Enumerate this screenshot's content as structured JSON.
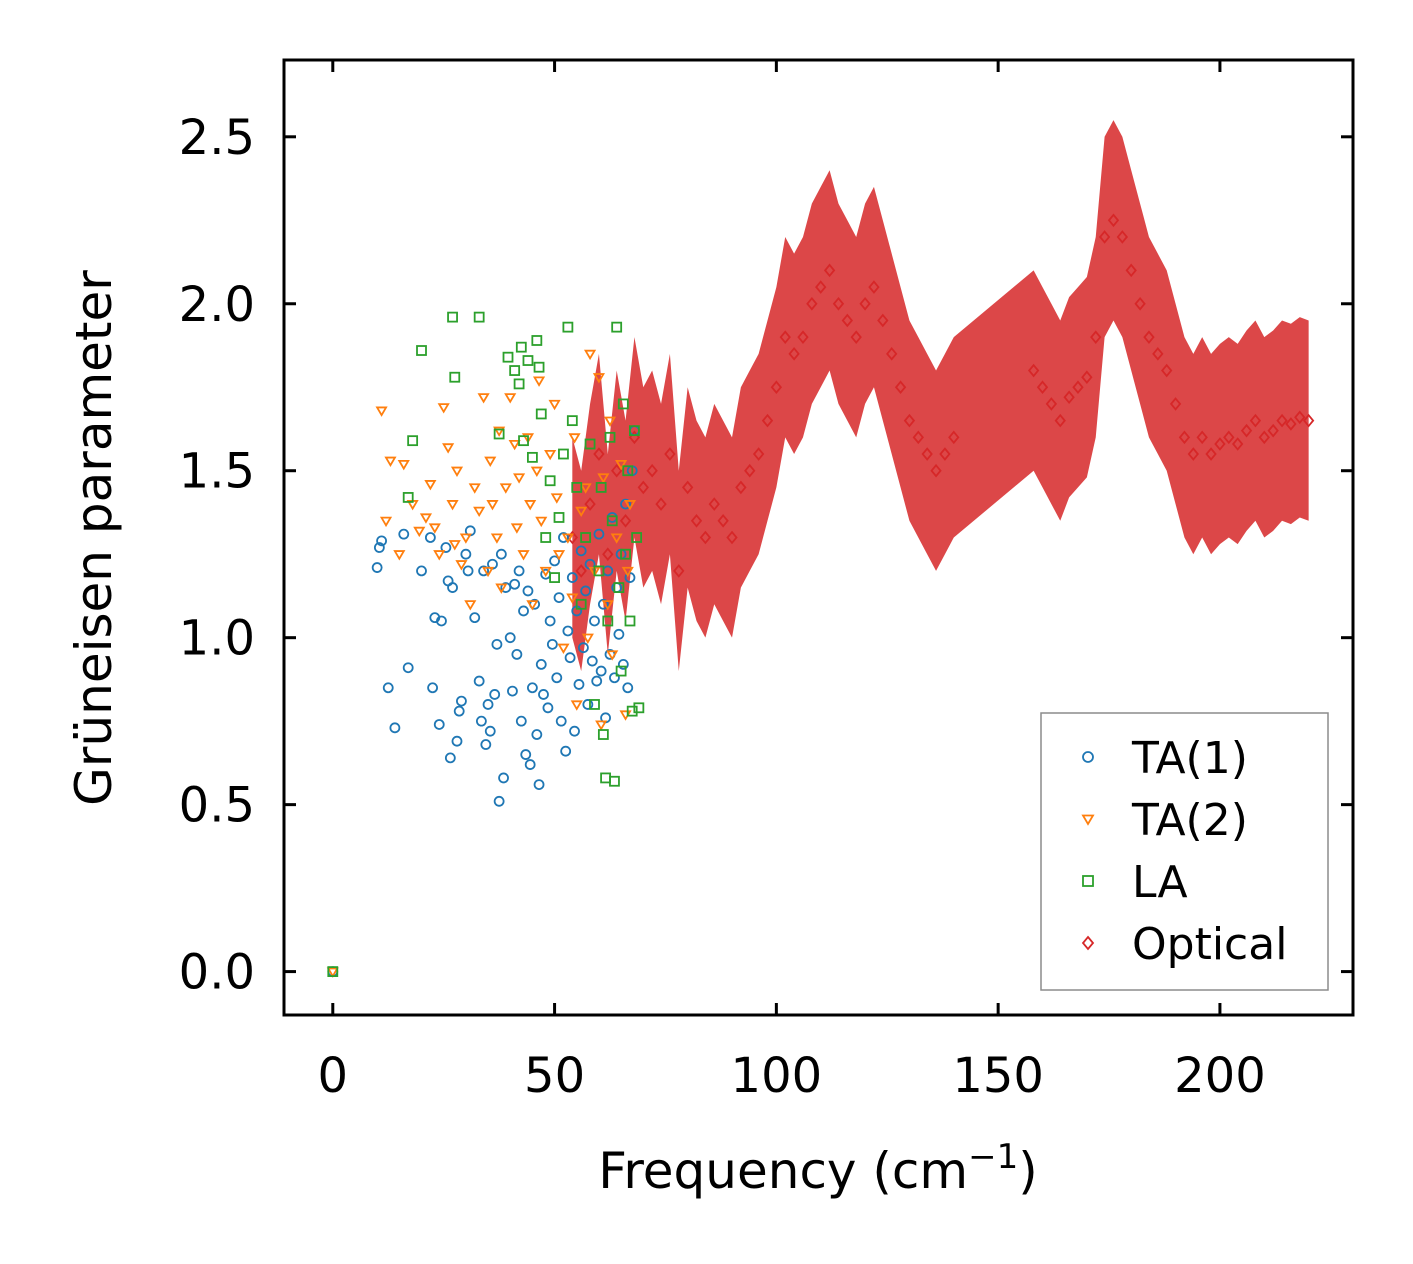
{
  "chart_data": {
    "type": "scatter",
    "title": "",
    "xlabel": "Frequency (cm",
    "xlabel_sup": "−1",
    "xlabel_close": ")",
    "ylabel": "Grüneisen parameter",
    "xlim": [
      -11,
      230
    ],
    "ylim": [
      -0.13,
      2.73
    ],
    "xticks": [
      0,
      50,
      100,
      150,
      200
    ],
    "xtick_labels": [
      "0",
      "50",
      "100",
      "150",
      "200"
    ],
    "yticks": [
      0.0,
      0.5,
      1.0,
      1.5,
      2.0,
      2.5
    ],
    "ytick_labels": [
      "0.0",
      "0.5",
      "1.0",
      "1.5",
      "2.0",
      "2.5"
    ],
    "grid": false,
    "legend_position": "lower-right",
    "series": [
      {
        "name": "TA(1)",
        "color": "#1f77b4",
        "marker": "circle",
        "x": [
          0,
          10,
          10.5,
          11,
          12.5,
          14,
          16,
          17,
          20,
          22,
          22.5,
          23,
          24,
          24.5,
          25.5,
          26,
          26.5,
          27,
          28,
          28.5,
          29,
          30,
          30.5,
          31,
          32,
          33,
          33.5,
          34,
          34.5,
          35,
          35.5,
          36,
          36.5,
          37,
          37.5,
          38,
          38.5,
          39,
          40,
          40.5,
          41,
          41.5,
          42,
          42.5,
          43,
          43.5,
          44,
          44.5,
          45,
          45.5,
          46,
          46.5,
          47,
          47.5,
          48,
          48.5,
          49,
          49.5,
          50,
          50.5,
          51,
          51.5,
          52,
          52.5,
          53,
          53.5,
          54,
          54.5,
          55,
          55.5,
          56,
          56.5,
          57,
          57.5,
          58,
          58.5,
          59,
          59.5,
          60,
          60.5,
          61,
          61.5,
          62,
          62.5,
          63,
          63.5,
          64,
          64.5,
          65,
          65.5,
          66,
          66.5,
          67,
          67.5,
          68
        ],
        "y": [
          0.0,
          1.21,
          1.27,
          1.29,
          0.85,
          0.73,
          1.31,
          0.91,
          1.2,
          1.3,
          0.85,
          1.06,
          0.74,
          1.05,
          1.27,
          1.17,
          0.64,
          1.15,
          0.69,
          0.78,
          0.81,
          1.25,
          1.2,
          1.32,
          1.06,
          0.87,
          0.75,
          1.2,
          0.68,
          0.8,
          0.72,
          1.22,
          0.83,
          0.98,
          0.51,
          1.25,
          0.58,
          1.15,
          1.0,
          0.84,
          1.16,
          0.95,
          1.2,
          0.75,
          1.08,
          0.65,
          1.14,
          0.62,
          0.85,
          1.1,
          0.71,
          0.56,
          0.92,
          0.83,
          1.19,
          0.79,
          1.05,
          0.98,
          1.23,
          0.88,
          1.12,
          0.75,
          1.3,
          0.66,
          1.02,
          0.94,
          1.18,
          0.72,
          1.08,
          0.86,
          1.26,
          0.97,
          1.14,
          0.8,
          1.22,
          0.93,
          1.05,
          0.87,
          1.31,
          0.9,
          1.1,
          0.76,
          1.2,
          0.95,
          1.36,
          0.88,
          1.15,
          1.01,
          1.25,
          0.92,
          1.4,
          0.85,
          1.18,
          1.5,
          1.62
        ]
      },
      {
        "name": "TA(2)",
        "color": "#ff7f0e",
        "marker": "triangle-down",
        "x": [
          0,
          11,
          12,
          13,
          15,
          16,
          18,
          19.5,
          21,
          22,
          23,
          24,
          25,
          26,
          27,
          27.5,
          28,
          29,
          30,
          31,
          32,
          33,
          34,
          35,
          35.5,
          36,
          37,
          37.5,
          38,
          39,
          40,
          41,
          41.5,
          42,
          43,
          44,
          44.5,
          45,
          46,
          46.5,
          47,
          48,
          49,
          50,
          50.5,
          51,
          52,
          53,
          54,
          54.5,
          55,
          56,
          57,
          57.5,
          58,
          59,
          60,
          60.5,
          61,
          62,
          62.5,
          63,
          64,
          65,
          66,
          66.5,
          67
        ],
        "y": [
          0.0,
          1.68,
          1.35,
          1.53,
          1.25,
          1.52,
          1.4,
          1.32,
          1.36,
          1.46,
          1.33,
          1.25,
          1.69,
          1.57,
          1.4,
          1.28,
          1.5,
          1.22,
          1.3,
          1.1,
          1.45,
          1.38,
          1.72,
          1.2,
          1.53,
          1.4,
          1.3,
          1.62,
          1.15,
          1.45,
          1.72,
          1.58,
          1.33,
          1.48,
          1.25,
          1.6,
          1.4,
          1.1,
          1.5,
          1.77,
          1.35,
          1.2,
          1.55,
          1.7,
          1.42,
          1.25,
          0.97,
          1.3,
          1.12,
          1.6,
          0.8,
          1.38,
          1.45,
          1.0,
          1.85,
          1.2,
          1.78,
          0.74,
          1.48,
          1.1,
          1.65,
          0.95,
          1.3,
          1.52,
          0.77,
          1.2,
          1.4
        ]
      },
      {
        "name": "LA",
        "color": "#2ca02c",
        "marker": "square",
        "x": [
          0,
          17,
          18,
          20,
          27,
          27.5,
          33,
          37.5,
          39.5,
          41,
          42,
          42.5,
          43,
          44,
          45,
          46,
          46.5,
          47,
          48,
          49,
          50,
          51,
          52,
          53,
          54,
          55,
          56,
          57,
          58,
          59,
          60,
          60.5,
          61,
          61.5,
          62,
          62.5,
          63,
          63.5,
          64,
          64.5,
          65,
          65.5,
          66,
          66.5,
          67,
          67.5,
          68,
          68.5,
          69
        ],
        "y": [
          0.0,
          1.42,
          1.59,
          1.86,
          1.96,
          1.78,
          1.96,
          1.61,
          1.84,
          1.8,
          1.76,
          1.87,
          1.59,
          1.83,
          1.54,
          1.89,
          1.81,
          1.67,
          1.3,
          1.47,
          1.18,
          1.36,
          1.55,
          1.93,
          1.65,
          1.45,
          1.1,
          1.3,
          1.58,
          0.8,
          1.2,
          1.45,
          0.71,
          0.58,
          1.05,
          1.6,
          1.35,
          0.57,
          1.93,
          1.15,
          0.9,
          1.7,
          1.25,
          1.5,
          1.05,
          0.78,
          1.62,
          1.3,
          0.79
        ]
      },
      {
        "name": "Optical",
        "color": "#d62728",
        "marker": "diamond",
        "x": [
          54,
          56,
          58,
          60,
          62,
          64,
          66,
          68,
          70,
          72,
          74,
          76,
          78,
          80,
          82,
          84,
          86,
          88,
          90,
          92,
          94,
          96,
          98,
          100,
          102,
          104,
          106,
          108,
          110,
          112,
          114,
          116,
          118,
          120,
          122,
          124,
          126,
          128,
          130,
          132,
          134,
          136,
          138,
          140,
          158,
          160,
          162,
          164,
          166,
          168,
          170,
          172,
          174,
          176,
          178,
          180,
          182,
          184,
          186,
          188,
          190,
          192,
          194,
          196,
          198,
          200,
          202,
          204,
          206,
          208,
          210,
          212,
          214,
          216,
          218,
          220
        ],
        "y": [
          1.3,
          1.2,
          1.4,
          1.55,
          1.25,
          1.5,
          1.35,
          1.6,
          1.45,
          1.5,
          1.4,
          1.55,
          1.2,
          1.45,
          1.35,
          1.3,
          1.4,
          1.35,
          1.3,
          1.45,
          1.5,
          1.55,
          1.65,
          1.75,
          1.9,
          1.85,
          1.9,
          2.0,
          2.05,
          2.1,
          2.0,
          1.95,
          1.9,
          2.0,
          2.05,
          1.95,
          1.85,
          1.75,
          1.65,
          1.6,
          1.55,
          1.5,
          1.55,
          1.6,
          1.8,
          1.75,
          1.7,
          1.65,
          1.72,
          1.75,
          1.78,
          1.9,
          2.2,
          2.25,
          2.2,
          2.1,
          2.0,
          1.9,
          1.85,
          1.8,
          1.7,
          1.6,
          1.55,
          1.6,
          1.55,
          1.58,
          1.6,
          1.58,
          1.62,
          1.65,
          1.6,
          1.62,
          1.65,
          1.64,
          1.66,
          1.65
        ]
      }
    ]
  }
}
